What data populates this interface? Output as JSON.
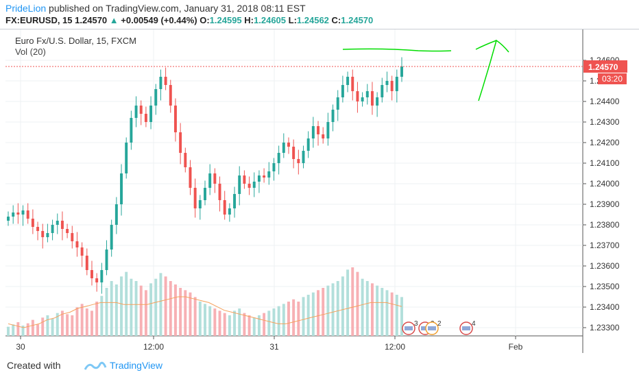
{
  "header": {
    "author": "PrideLion",
    "published": "published on TradingView.com, January 31, 2018 08:11 EST",
    "symbol": "FX:EURUSD, 15",
    "last": "1.24570",
    "change": "+0.00549 (+0.44%)",
    "o_label": "O:",
    "o": "1.24595",
    "h_label": "H:",
    "h": "1.24605",
    "l_label": "L:",
    "l": "1.24562",
    "c_label": "C:",
    "c": "1.24570"
  },
  "pane": {
    "title": "Euro Fx/U.S. Dollar, 15, FXCM",
    "volume_label": "Vol (20)"
  },
  "footer": {
    "created_with": "Created with",
    "brand": "TradingView"
  },
  "colors": {
    "up": "#26a69a",
    "down": "#ef5350",
    "vol_up": "#b2dfdb",
    "vol_down": "#f7b0b4",
    "ma": "#f5a05a",
    "drawing": "#00dd00",
    "price_tag": "#ef5350"
  },
  "chart_data": {
    "type": "candlestick",
    "y_ticks": [
      "1.24600",
      "1.24500",
      "1.24400",
      "1.24300",
      "1.24200",
      "1.24100",
      "1.24000",
      "1.23900",
      "1.23800",
      "1.23700",
      "1.23600",
      "1.23500",
      "1.23400",
      "1.23300"
    ],
    "ylim": [
      1.233,
      1.2465
    ],
    "x_ticks": [
      "30",
      "12:00",
      "31",
      "12:00",
      "Feb"
    ],
    "last_price_label": "1.24570",
    "countdown_label": "03:20",
    "event_markers": [
      "3",
      "2",
      "2",
      "4"
    ],
    "close_series": [
      1.2384,
      1.2386,
      1.2385,
      1.2387,
      1.2383,
      1.2379,
      1.2377,
      1.2374,
      1.2376,
      1.238,
      1.2382,
      1.2378,
      1.2376,
      1.2372,
      1.2369,
      1.2365,
      1.2358,
      1.2354,
      1.2352,
      1.2358,
      1.2368,
      1.238,
      1.239,
      1.2405,
      1.242,
      1.2432,
      1.2438,
      1.2434,
      1.243,
      1.2438,
      1.2446,
      1.2452,
      1.2448,
      1.2438,
      1.2425,
      1.2415,
      1.2408,
      1.2398,
      1.2388,
      1.2392,
      1.2398,
      1.2405,
      1.24,
      1.2392,
      1.2385,
      1.2388,
      1.2395,
      1.2404,
      1.24,
      1.2398,
      1.2401,
      1.2404,
      1.2403,
      1.2406,
      1.241,
      1.2415,
      1.242,
      1.2418,
      1.2412,
      1.241,
      1.2416,
      1.2422,
      1.2428,
      1.2424,
      1.2422,
      1.243,
      1.2436,
      1.2442,
      1.2448,
      1.2452,
      1.2445,
      1.244,
      1.2442,
      1.2445,
      1.2438,
      1.2442,
      1.2448,
      1.245,
      1.2445,
      1.2452,
      1.2457
    ],
    "volume_series": [
      8,
      10,
      12,
      9,
      11,
      14,
      10,
      16,
      18,
      15,
      20,
      22,
      19,
      18,
      25,
      28,
      24,
      22,
      30,
      35,
      42,
      48,
      45,
      52,
      56,
      50,
      48,
      44,
      40,
      46,
      50,
      55,
      52,
      48,
      45,
      42,
      40,
      38,
      34,
      30,
      28,
      26,
      24,
      22,
      20,
      18,
      22,
      24,
      20,
      18,
      16,
      18,
      20,
      22,
      24,
      26,
      28,
      30,
      32,
      30,
      34,
      36,
      38,
      40,
      42,
      44,
      46,
      48,
      52,
      58,
      60,
      56,
      50,
      48,
      46,
      44,
      42,
      40,
      38,
      36,
      34
    ],
    "volume_ma": [
      1.2339,
      1.2338,
      1.2337,
      1.2338,
      1.2339,
      1.2341,
      1.2342,
      1.2344,
      1.2345,
      1.2347,
      1.2348,
      1.2349,
      1.235,
      1.235,
      1.235,
      1.2349,
      1.2349,
      1.2349,
      1.2349,
      1.235,
      1.2351,
      1.2352,
      1.2353,
      1.2353,
      1.2352,
      1.2351,
      1.235,
      1.2348,
      1.2346,
      1.2345,
      1.2344,
      1.2343,
      1.2342,
      1.2341,
      1.234,
      1.2339,
      1.2339,
      1.234,
      1.2341,
      1.2342,
      1.2343,
      1.2344,
      1.2345,
      1.2346,
      1.2347,
      1.2348,
      1.2349,
      1.235,
      1.235,
      1.235,
      1.2349,
      1.2348
    ]
  }
}
